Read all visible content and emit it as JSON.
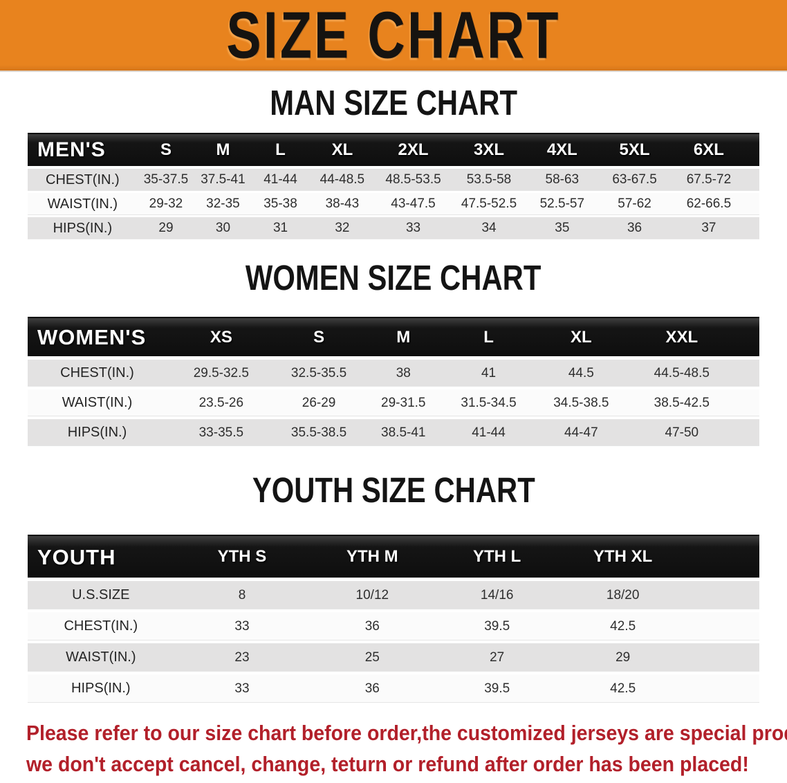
{
  "banner": {
    "title": "SIZE CHART"
  },
  "colors": {
    "accent_orange": "#e8831e",
    "header_black": "#141414",
    "row_gray": "#e3e2e2",
    "row_white": "#fbfbfb",
    "note_red": "#b2202a"
  },
  "sections": [
    {
      "heading": "MAN SIZE CHART",
      "table": {
        "label": "MEN'S",
        "columns": [
          "S",
          "M",
          "L",
          "XL",
          "2XL",
          "3XL",
          "4XL",
          "5XL",
          "6XL"
        ],
        "rows": [
          {
            "label": "CHEST(IN.)",
            "values": [
              "35-37.5",
              "37.5-41",
              "41-44",
              "44-48.5",
              "48.5-53.5",
              "53.5-58",
              "58-63",
              "63-67.5",
              "67.5-72"
            ]
          },
          {
            "label": "WAIST(IN.)",
            "values": [
              "29-32",
              "32-35",
              "35-38",
              "38-43",
              "43-47.5",
              "47.5-52.5",
              "52.5-57",
              "57-62",
              "62-66.5"
            ]
          },
          {
            "label": "HIPS(IN.)",
            "values": [
              "29",
              "30",
              "31",
              "32",
              "33",
              "34",
              "35",
              "36",
              "37"
            ]
          }
        ]
      }
    },
    {
      "heading": "WOMEN SIZE CHART",
      "table": {
        "label": "WOMEN'S",
        "columns": [
          "XS",
          "S",
          "M",
          "L",
          "XL",
          "XXL"
        ],
        "rows": [
          {
            "label": "CHEST(IN.)",
            "values": [
              "29.5-32.5",
              "32.5-35.5",
              "38",
              "41",
              "44.5",
              "44.5-48.5"
            ]
          },
          {
            "label": "WAIST(IN.)",
            "values": [
              "23.5-26",
              "26-29",
              "29-31.5",
              "31.5-34.5",
              "34.5-38.5",
              "38.5-42.5"
            ]
          },
          {
            "label": "HIPS(IN.)",
            "values": [
              "33-35.5",
              "35.5-38.5",
              "38.5-41",
              "41-44",
              "44-47",
              "47-50"
            ]
          }
        ]
      }
    },
    {
      "heading": "YOUTH SIZE CHART",
      "table": {
        "label": "YOUTH",
        "columns": [
          "YTH S",
          "YTH M",
          "YTH L",
          "YTH XL"
        ],
        "rows": [
          {
            "label": "U.S.SIZE",
            "values": [
              "8",
              "10/12",
              "14/16",
              "18/20"
            ]
          },
          {
            "label": "CHEST(IN.)",
            "values": [
              "33",
              "36",
              "39.5",
              "42.5"
            ]
          },
          {
            "label": "WAIST(IN.)",
            "values": [
              "23",
              "25",
              "27",
              "29"
            ]
          },
          {
            "label": "HIPS(IN.)",
            "values": [
              "33",
              "36",
              "39.5",
              "42.5"
            ]
          }
        ]
      }
    }
  ],
  "footer": {
    "line1": "Please refer to our size chart before order,the customized jerseys are special products,",
    "line2": "we don't accept cancel, change, teturn or refund after order has been placed!"
  }
}
